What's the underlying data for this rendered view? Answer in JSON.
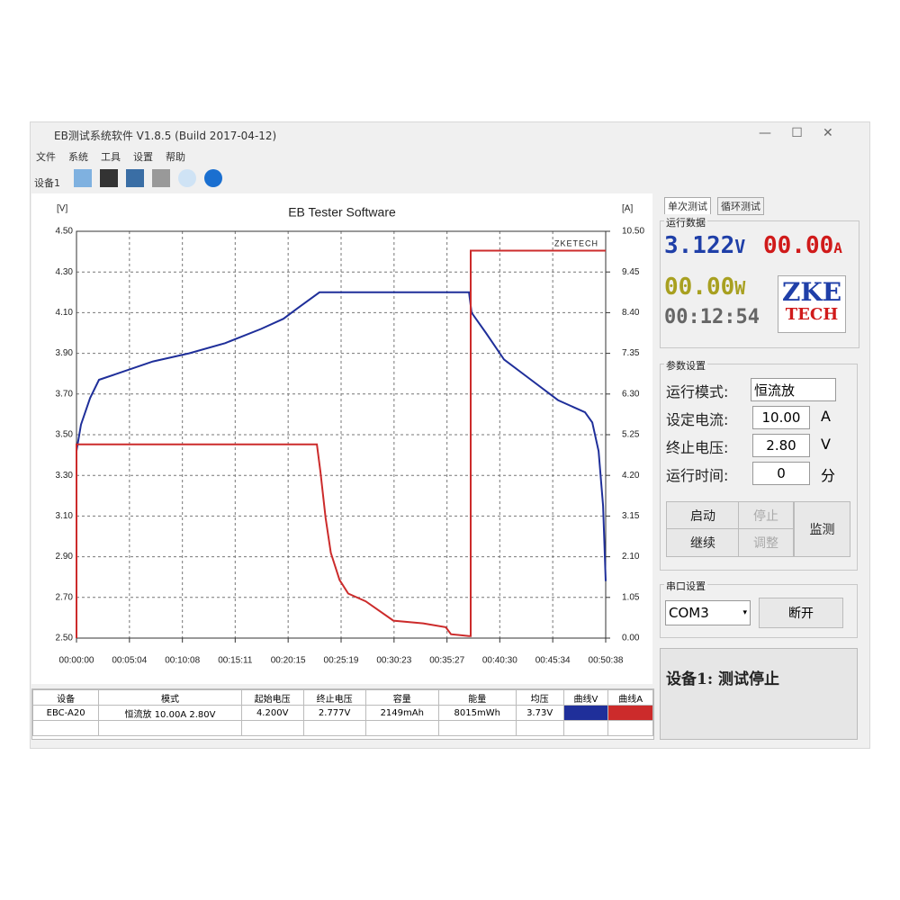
{
  "window": {
    "title": "EB测试系统软件 V1.8.5 (Build 2017-04-12)",
    "menu": [
      "文件",
      "系统",
      "工具",
      "设置",
      "帮助"
    ],
    "device_tab": "设备1"
  },
  "chart_data": {
    "type": "line",
    "title": "EB Tester Software",
    "y_label": "[V]",
    "y2_label": "[A]",
    "annotation": "ZKETECH",
    "xlim": [
      0,
      3038
    ],
    "xticks": [
      {
        "value": 0,
        "label": "00:00:00"
      },
      {
        "value": 304,
        "label": "00:05:04"
      },
      {
        "value": 608,
        "label": "00:10:08"
      },
      {
        "value": 911,
        "label": "00:15:11"
      },
      {
        "value": 1215,
        "label": "00:20:15"
      },
      {
        "value": 1519,
        "label": "00:25:19"
      },
      {
        "value": 1823,
        "label": "00:30:23"
      },
      {
        "value": 2127,
        "label": "00:35:27"
      },
      {
        "value": 2430,
        "label": "00:40:30"
      },
      {
        "value": 2734,
        "label": "00:45:34"
      },
      {
        "value": 3038,
        "label": "00:50:38"
      }
    ],
    "ylim": [
      2.5,
      4.5
    ],
    "yticks": [
      {
        "value": 2.5,
        "label": "2.50"
      },
      {
        "value": 2.7,
        "label": "2.70"
      },
      {
        "value": 2.9,
        "label": "2.90"
      },
      {
        "value": 3.1,
        "label": "3.10"
      },
      {
        "value": 3.3,
        "label": "3.30"
      },
      {
        "value": 3.5,
        "label": "3.50"
      },
      {
        "value": 3.7,
        "label": "3.70"
      },
      {
        "value": 3.9,
        "label": "3.90"
      },
      {
        "value": 4.1,
        "label": "4.10"
      },
      {
        "value": 4.3,
        "label": "4.30"
      },
      {
        "value": 4.5,
        "label": "4.50"
      }
    ],
    "y2lim": [
      0,
      10.5
    ],
    "y2ticks": [
      {
        "value": 0,
        "label": "0.00"
      },
      {
        "value": 1.05,
        "label": "1.05"
      },
      {
        "value": 2.1,
        "label": "2.10"
      },
      {
        "value": 3.15,
        "label": "3.15"
      },
      {
        "value": 4.2,
        "label": "4.20"
      },
      {
        "value": 5.25,
        "label": "5.25"
      },
      {
        "value": 6.3,
        "label": "6.30"
      },
      {
        "value": 7.35,
        "label": "7.35"
      },
      {
        "value": 8.4,
        "label": "8.40"
      },
      {
        "value": 9.45,
        "label": "9.45"
      },
      {
        "value": 10.5,
        "label": "10.50"
      }
    ],
    "grid": true,
    "series": [
      {
        "color": "#1f2f9a",
        "x": [
          0,
          26,
          78,
          129,
          233,
          439,
          646,
          853,
          1059,
          1188,
          1266,
          1395,
          2253,
          2268,
          2351,
          2454,
          2609,
          2764,
          2919,
          2961,
          2997,
          3023,
          3038
        ],
        "values": [
          3.42,
          3.55,
          3.68,
          3.77,
          3.8,
          3.86,
          3.9,
          3.95,
          4.02,
          4.07,
          4.12,
          4.2,
          4.2,
          4.1,
          4.0,
          3.87,
          3.77,
          3.67,
          3.61,
          3.56,
          3.42,
          3.15,
          2.78
        ]
      },
      {
        "color": "#cc2b2b",
        "axis": "y2",
        "x": [
          0,
          0,
          1380,
          1400,
          1430,
          1460,
          1510,
          1560,
          1660,
          1819,
          1990,
          2120,
          2150,
          2253,
          2263,
          2263,
          3038
        ],
        "values": [
          0,
          5.0,
          5.0,
          4.3,
          3.1,
          2.2,
          1.5,
          1.15,
          0.95,
          0.45,
          0.38,
          0.28,
          0.1,
          0.05,
          0.05,
          10.0,
          10.0
        ]
      }
    ]
  },
  "panel": {
    "tabs": [
      "单次测试",
      "循环测试"
    ],
    "run_data": {
      "title": "运行数据",
      "voltage": "3.122",
      "voltage_unit": "V",
      "current": "00.00",
      "current_unit": "A",
      "power": "00.00",
      "power_unit": "W",
      "time": "00:12:54",
      "logo": [
        "ZKE",
        "TECH"
      ]
    },
    "params": {
      "title": "参数设置",
      "rows": [
        {
          "label": "运行模式:",
          "value": "恒流放"
        },
        {
          "label": "设定电流:",
          "value": "10.00",
          "unit": "A"
        },
        {
          "label": "终止电压:",
          "value": "2.80",
          "unit": "V"
        },
        {
          "label": "运行时间:",
          "value": "0",
          "unit": "分"
        }
      ]
    },
    "buttons": [
      "启动",
      "停止",
      "继续",
      "调整",
      "监测"
    ],
    "serial": {
      "title": "串口设置",
      "port": "COM3",
      "button": "断开"
    },
    "status": "设备1: 测试停止"
  },
  "table": {
    "headers": [
      "设备",
      "模式",
      "起始电压",
      "终止电压",
      "容量",
      "能量",
      "均压",
      "曲线V",
      "曲线A"
    ],
    "rows": [
      [
        "EBC-A20",
        "恒流放 10.00A 2.80V",
        "4.200V",
        "2.777V",
        "2149mAh",
        "8015mWh",
        "3.73V"
      ]
    ]
  }
}
